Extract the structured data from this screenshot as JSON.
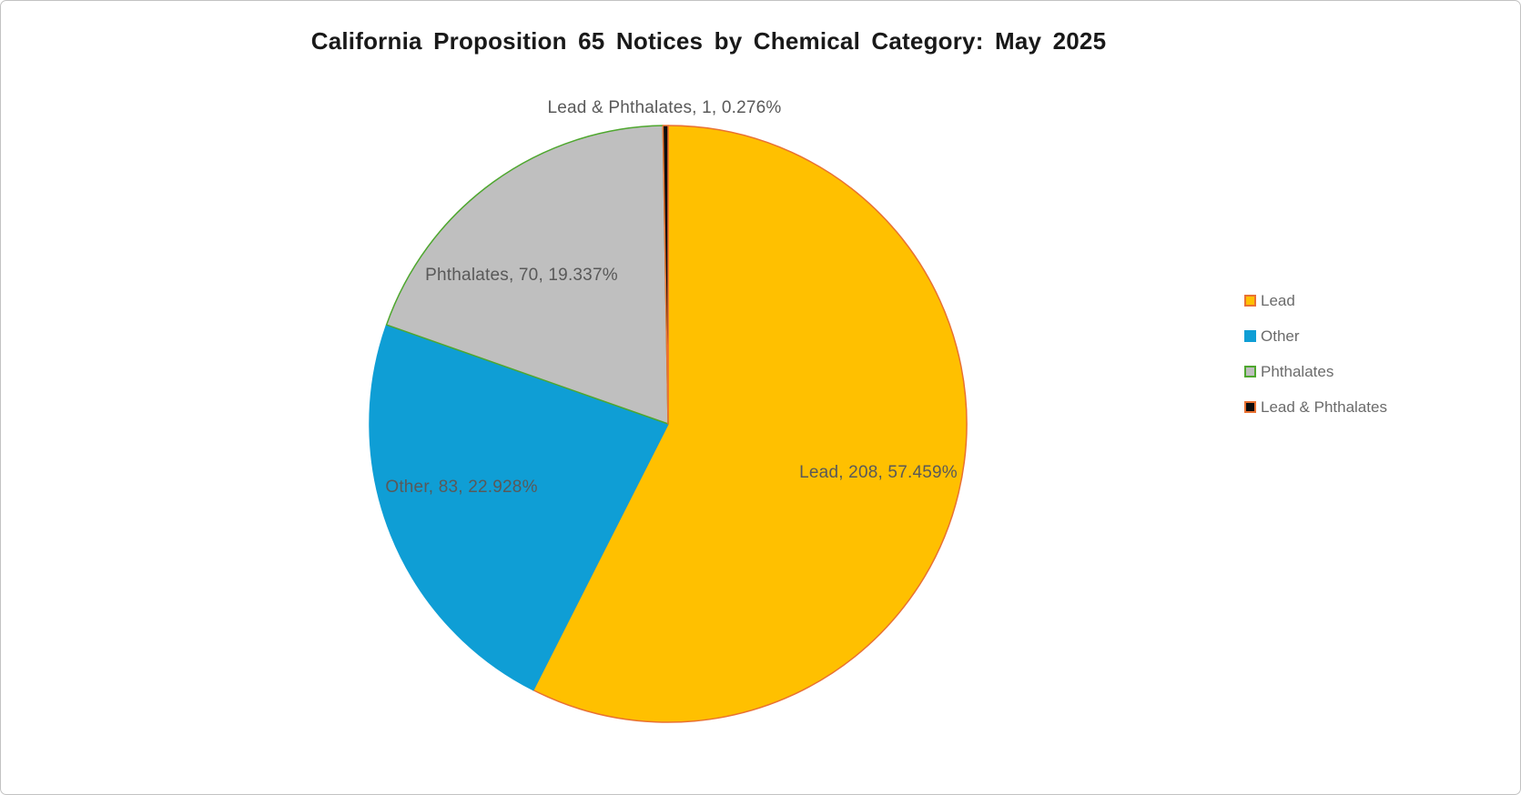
{
  "frame": {
    "background": "#FFFFFF",
    "border_color": "#C2C2C2"
  },
  "chart_data": {
    "type": "pie",
    "title": "California Proposition 65 Notices by Chemical Category: May 2025",
    "categories": [
      "Lead",
      "Other",
      "Phthalates",
      "Lead & Phthalates"
    ],
    "values": [
      208,
      83,
      70,
      1
    ],
    "percentages": [
      57.459,
      22.928,
      19.337,
      0.276
    ],
    "start_angle_deg": 0,
    "direction": "clockwise",
    "slice_labels": [
      "Lead, 208, 57.459%",
      "Other, 83, 22.928%",
      "Phthalates, 70, 19.337%",
      "Lead & Phthalates, 1, 0.276%"
    ],
    "colors": {
      "fills": [
        "#FFC000",
        "#0F9ED5",
        "#BFBFBF",
        "#0C0C0C"
      ],
      "borders": [
        "#E97132",
        "#0F9ED5",
        "#4EA72E",
        "#E97132"
      ]
    },
    "label_color": "#595959",
    "legend": {
      "position": "right",
      "entries": [
        "Lead",
        "Other",
        "Phthalates",
        "Lead & Phthalates"
      ]
    }
  }
}
